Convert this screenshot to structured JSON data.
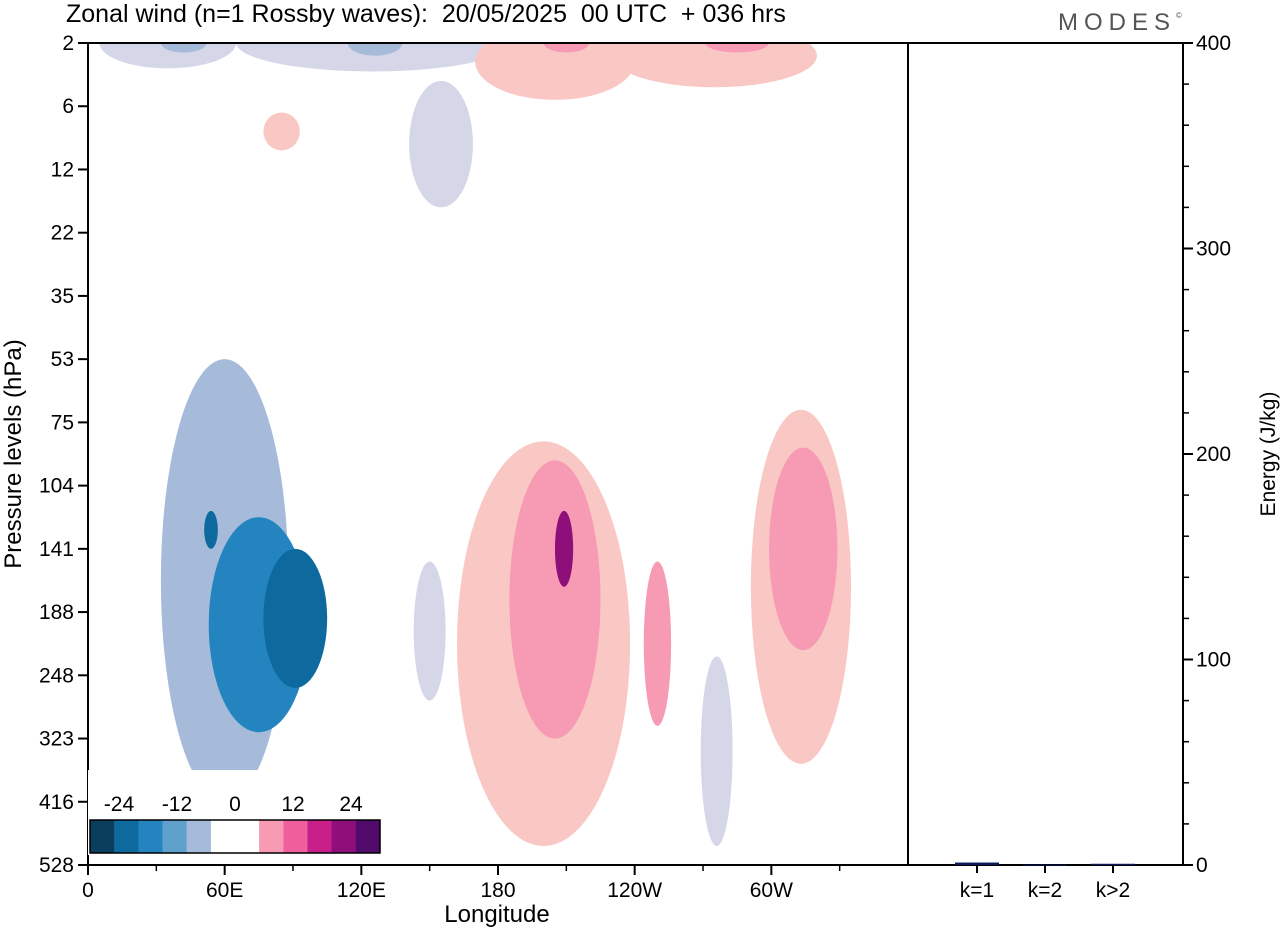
{
  "header": {
    "title": "Zonal wind (n=1 Rossby waves):  20/05/2025  00 UTC  + 036 hrs",
    "brand": "MODES"
  },
  "colors": {
    "neg": [
      "#0b3d5c",
      "#0e6a9e",
      "#2384bf",
      "#5fa1cc",
      "#a5bbd9",
      "#d5d6e8"
    ],
    "pos": [
      "#fac8c4",
      "#f79ab3",
      "#ef5f9c",
      "#c71e8a",
      "#8e0e7a",
      "#520a6c"
    ]
  },
  "chart_data": [
    {
      "type": "heatmap",
      "title": "Zonal wind (n=1 Rossby waves):  20/05/2025  00 UTC  + 036 hrs",
      "xlabel": "Longitude",
      "ylabel": "Pressure levels (hPa)",
      "x_ticks": [
        "0",
        "60E",
        "120E",
        "180",
        "120W",
        "60W"
      ],
      "x_tick_values": [
        0,
        60,
        120,
        180,
        240,
        300
      ],
      "xlim": [
        0,
        360
      ],
      "y_ticks": [
        "2",
        "6",
        "12",
        "22",
        "35",
        "53",
        "75",
        "104",
        "141",
        "188",
        "248",
        "323",
        "416",
        "528"
      ],
      "y_scale": "categorical-levels",
      "colorbar": {
        "tick_labels": [
          "-24",
          "-12",
          "0",
          "12",
          "24"
        ],
        "tick_values": [
          -24,
          -12,
          0,
          12,
          24
        ],
        "levels": [
          -27,
          -22.5,
          -18,
          -13.5,
          -9,
          -4.5,
          4.5,
          9,
          13.5,
          18,
          22.5,
          27
        ],
        "placement": "bottom-left inset"
      },
      "contours": [
        {
          "lon": 35,
          "lev": 0.0,
          "value": -5,
          "rx": 30,
          "ry": 0.4
        },
        {
          "lon": 125,
          "lev": 0.0,
          "value": -5,
          "rx": 60,
          "ry": 0.45
        },
        {
          "lon": 155,
          "lev": 1.6,
          "value": -5,
          "rx": 14,
          "ry": 1.0
        },
        {
          "lon": 42,
          "lev": 0.0,
          "value": -9,
          "rx": 10,
          "ry": 0.15
        },
        {
          "lon": 126,
          "lev": 0.0,
          "value": -9,
          "rx": 12,
          "ry": 0.2
        },
        {
          "lon": 205,
          "lev": 0.3,
          "value": 6,
          "rx": 35,
          "ry": 0.6
        },
        {
          "lon": 275,
          "lev": 0.2,
          "value": 6,
          "rx": 45,
          "ry": 0.5
        },
        {
          "lon": 210,
          "lev": 0.0,
          "value": 12,
          "rx": 10,
          "ry": 0.15
        },
        {
          "lon": 285,
          "lev": 0.0,
          "value": 12,
          "rx": 14,
          "ry": 0.15
        },
        {
          "lon": 85,
          "lev": 1.4,
          "value": 6,
          "rx": 8,
          "ry": 0.3
        },
        {
          "lon": 60,
          "lev": 8.5,
          "value": -8,
          "rx": 28,
          "ry": 3.5
        },
        {
          "lon": 75,
          "lev": 9.2,
          "value": -15,
          "rx": 22,
          "ry": 1.7
        },
        {
          "lon": 91,
          "lev": 9.1,
          "value": -20,
          "rx": 14,
          "ry": 1.1
        },
        {
          "lon": 54,
          "lev": 7.7,
          "value": -20,
          "rx": 3,
          "ry": 0.3
        },
        {
          "lon": 150,
          "lev": 9.3,
          "value": -6,
          "rx": 7,
          "ry": 1.1
        },
        {
          "lon": 200,
          "lev": 9.5,
          "value": 8,
          "rx": 38,
          "ry": 3.2
        },
        {
          "lon": 205,
          "lev": 8.8,
          "value": 14,
          "rx": 20,
          "ry": 2.2
        },
        {
          "lon": 209,
          "lev": 8.0,
          "value": 20,
          "rx": 4,
          "ry": 0.6
        },
        {
          "lon": 250,
          "lev": 9.5,
          "value": 14,
          "rx": 6,
          "ry": 1.3
        },
        {
          "lon": 313,
          "lev": 8.6,
          "value": 8,
          "rx": 22,
          "ry": 2.8
        },
        {
          "lon": 314,
          "lev": 8.0,
          "value": 14,
          "rx": 15,
          "ry": 1.6
        },
        {
          "lon": 276,
          "lev": 11.2,
          "value": -6,
          "rx": 7,
          "ry": 1.5
        },
        {
          "lon": 123,
          "lev": 12.1,
          "value": 6,
          "rx": 3,
          "ry": 0.6
        }
      ]
    },
    {
      "type": "bar",
      "categories": [
        "k=1",
        "k=2",
        "k>2"
      ],
      "values": [
        1.2,
        0.2,
        0.6
      ],
      "ylabel": "Energy (J/kg)",
      "ylim": [
        0,
        400
      ],
      "y_ticks": [
        0,
        100,
        200,
        300,
        400
      ]
    }
  ]
}
